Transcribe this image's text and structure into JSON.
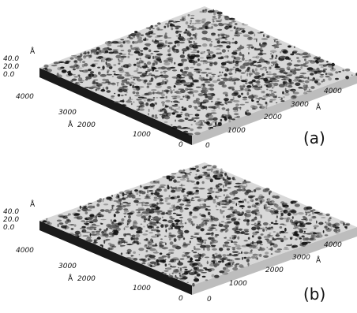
{
  "panels": [
    {
      "label": "(a)",
      "z_axis": {
        "unit": "Å",
        "ticks": [
          "40.0",
          "20.0",
          "0.0"
        ]
      },
      "left_axis": {
        "unit": "Å",
        "ticks": [
          "4000",
          "3000",
          "2000",
          "1000",
          "0"
        ]
      },
      "right_axis": {
        "unit": "Å",
        "ticks": [
          "0",
          "1000",
          "2000",
          "3000",
          "4000"
        ]
      },
      "seed": 7
    },
    {
      "label": "(b)",
      "z_axis": {
        "unit": "Å",
        "ticks": [
          "40.0",
          "20.0",
          "0.0"
        ]
      },
      "left_axis": {
        "unit": "Å",
        "ticks": [
          "4000",
          "3000",
          "2000",
          "1000",
          "0"
        ]
      },
      "right_axis": {
        "unit": "Å",
        "ticks": [
          "0",
          "1000",
          "2000",
          "3000",
          "4000"
        ]
      },
      "seed": 19
    }
  ],
  "colors": {
    "surface_light": "#d8d8d8",
    "surface_dark": "#111111",
    "side": "#1a1a1a",
    "front_face": "#bdbdbd"
  }
}
